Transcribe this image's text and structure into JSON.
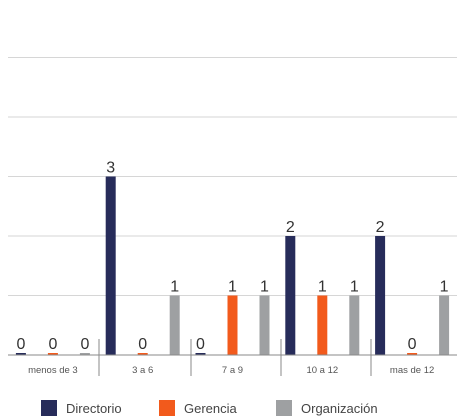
{
  "chart_data": {
    "type": "bar",
    "categories": [
      "menos de 3",
      "3 a 6",
      "7 a 9",
      "10 a 12",
      "mas de 12"
    ],
    "series": [
      {
        "name": "Directorio",
        "values": [
          0,
          3,
          0,
          2,
          2
        ]
      },
      {
        "name": "Gerencia",
        "values": [
          0,
          0,
          1,
          1,
          0
        ]
      },
      {
        "name": "Organización",
        "values": [
          0,
          1,
          1,
          1,
          1
        ]
      }
    ],
    "data_labels": [
      [
        "0",
        "3",
        "0",
        "2",
        "2"
      ],
      [
        "0",
        "0",
        "1",
        "1",
        "0"
      ],
      [
        "0",
        "1",
        "1",
        "1",
        "1"
      ]
    ],
    "ylim": [
      0,
      6
    ],
    "grid": true,
    "legend_position": "bottom",
    "colors": [
      "#272c5a",
      "#f25a1c",
      "#9ea0a2"
    ]
  }
}
